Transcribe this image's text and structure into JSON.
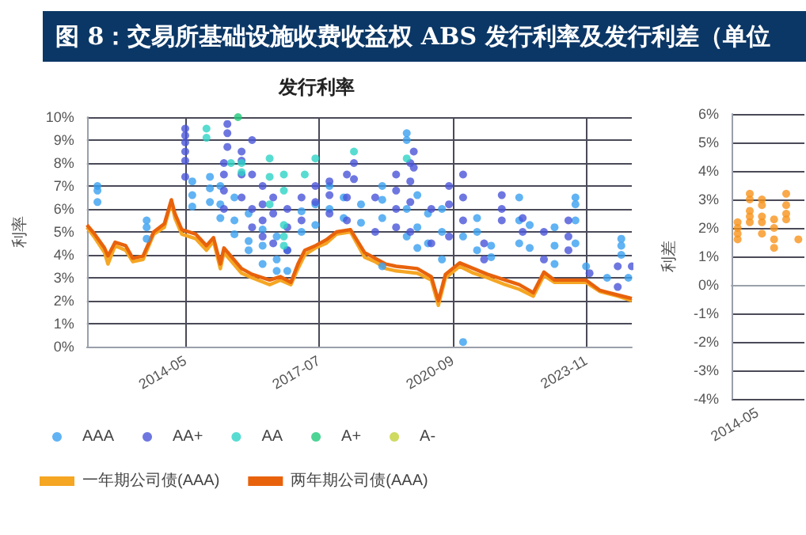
{
  "chart_data": [
    {
      "type": "scatter",
      "title": "发行利率",
      "ylabel": "利率",
      "annotations": [
        "图 8：交易所基础设施收费收益权 ABS 发行利率及发行利差（单位"
      ],
      "xlim": [
        "2012-01",
        "2024-12"
      ],
      "xticks": [
        "2014-05",
        "2017-07",
        "2020-09",
        "2023-11"
      ],
      "ylim": [
        0,
        10
      ],
      "yticks": [
        {
          "value": 0,
          "label": "0%"
        },
        {
          "value": 1,
          "label": "1%"
        },
        {
          "value": 2,
          "label": "2%"
        },
        {
          "value": 3,
          "label": "3%"
        },
        {
          "value": 4,
          "label": "4%"
        },
        {
          "value": 5,
          "label": "5%"
        },
        {
          "value": 6,
          "label": "6%"
        },
        {
          "value": 7,
          "label": "7%"
        },
        {
          "value": 8,
          "label": "8%"
        },
        {
          "value": 9,
          "label": "9%"
        },
        {
          "value": 10,
          "label": "10%"
        }
      ],
      "grid": true,
      "legend": "bottom",
      "marker": "circle",
      "series": [
        {
          "name": "AAA",
          "type": "scatter",
          "color": "#3aa0f0",
          "x": [
            "2012-04",
            "2012-04",
            "2012-04",
            "2013-06",
            "2013-06",
            "2013-06",
            "2014-07",
            "2014-07",
            "2014-07",
            "2014-12",
            "2014-12",
            "2014-12",
            "2015-03",
            "2015-03",
            "2015-03",
            "2015-07",
            "2015-07",
            "2015-07",
            "2015-11",
            "2015-11",
            "2015-11",
            "2016-03",
            "2016-03",
            "2016-03",
            "2016-07",
            "2016-07",
            "2016-07",
            "2016-10",
            "2016-10",
            "2017-02",
            "2017-02",
            "2017-06",
            "2017-06",
            "2017-10",
            "2017-10",
            "2018-02",
            "2018-02",
            "2018-07",
            "2018-07",
            "2019-01",
            "2019-01",
            "2019-01",
            "2019-01",
            "2019-08",
            "2019-08",
            "2019-08",
            "2019-08",
            "2019-11",
            "2019-11",
            "2019-11",
            "2020-02",
            "2020-02",
            "2020-06",
            "2020-06",
            "2020-06",
            "2020-12",
            "2020-12",
            "2021-04",
            "2021-04",
            "2021-04",
            "2021-08",
            "2021-08",
            "2022-04",
            "2022-04",
            "2022-04",
            "2022-07",
            "2022-07",
            "2023-02",
            "2023-02",
            "2023-02",
            "2023-08",
            "2023-08",
            "2023-08",
            "2023-08",
            "2023-11",
            "2024-05",
            "2024-09",
            "2024-09",
            "2024-09",
            "2024-11"
          ],
          "values": [
            7.0,
            6.8,
            6.3,
            5.5,
            5.2,
            4.7,
            7.2,
            6.6,
            6.1,
            7.4,
            6.9,
            6.3,
            7.0,
            6.2,
            5.6,
            6.5,
            5.5,
            4.9,
            5.8,
            4.6,
            4.2,
            5.1,
            4.4,
            3.6,
            4.8,
            3.8,
            3.3,
            4.2,
            3.3,
            5.9,
            5.0,
            6.2,
            5.3,
            7.0,
            6.0,
            6.5,
            5.6,
            6.2,
            5.4,
            7.0,
            6.4,
            5.6,
            3.5,
            9.3,
            9.0,
            6.0,
            4.8,
            6.6,
            5.2,
            4.3,
            5.8,
            4.5,
            6.0,
            5.0,
            3.8,
            0.2,
            4.8,
            5.6,
            5.0,
            4.2,
            4.4,
            3.9,
            6.5,
            5.5,
            4.5,
            5.3,
            4.3,
            5.2,
            4.4,
            3.6,
            6.5,
            6.2,
            5.5,
            4.5,
            3.5,
            3.0,
            4.7,
            4.4,
            4.0,
            3.0
          ]
        },
        {
          "name": "AA+",
          "type": "scatter",
          "color": "#4a55d8",
          "x": [
            "2014-05",
            "2014-05",
            "2014-05",
            "2014-05",
            "2014-05",
            "2014-05",
            "2015-04",
            "2015-04",
            "2015-04",
            "2015-04",
            "2015-05",
            "2015-05",
            "2015-05",
            "2015-09",
            "2015-09",
            "2015-09",
            "2015-09",
            "2015-12",
            "2015-12",
            "2015-12",
            "2015-12",
            "2016-03",
            "2016-03",
            "2016-03",
            "2016-03",
            "2016-06",
            "2016-06",
            "2016-06",
            "2016-10",
            "2016-10",
            "2016-10",
            "2017-02",
            "2017-02",
            "2017-06",
            "2017-06",
            "2017-10",
            "2017-10",
            "2017-10",
            "2018-03",
            "2018-03",
            "2018-03",
            "2018-05",
            "2018-05",
            "2018-11",
            "2018-11",
            "2019-05",
            "2019-05",
            "2019-05",
            "2019-05",
            "2019-09",
            "2019-09",
            "2019-09",
            "2019-09",
            "2019-10",
            "2019-10",
            "2020-03",
            "2020-03",
            "2020-08",
            "2020-08",
            "2020-08",
            "2020-12",
            "2020-12",
            "2020-12",
            "2021-06",
            "2021-06",
            "2021-11",
            "2021-11",
            "2021-11",
            "2022-05",
            "2022-05",
            "2022-11",
            "2022-11",
            "2023-06",
            "2023-06",
            "2023-06",
            "2023-12",
            "2024-08",
            "2024-08",
            "2024-12"
          ],
          "values": [
            9.5,
            9.2,
            8.9,
            8.5,
            8.1,
            7.4,
            8.0,
            7.5,
            6.8,
            6.0,
            9.7,
            9.3,
            8.7,
            8.5,
            8.1,
            7.5,
            6.5,
            9.0,
            7.5,
            6.0,
            5.2,
            7.0,
            6.2,
            5.5,
            4.8,
            6.5,
            5.8,
            4.5,
            6.0,
            5.2,
            4.2,
            6.5,
            5.5,
            7.0,
            6.3,
            7.2,
            6.6,
            5.8,
            7.5,
            6.5,
            5.5,
            8.0,
            7.3,
            6.5,
            5.0,
            7.5,
            6.8,
            6.0,
            5.2,
            8.0,
            7.2,
            6.3,
            5.0,
            8.5,
            7.8,
            6.0,
            4.5,
            7.0,
            6.2,
            4.8,
            7.5,
            6.5,
            5.5,
            4.5,
            3.8,
            6.6,
            6.0,
            5.5,
            5.6,
            5.0,
            5.0,
            3.8,
            5.5,
            4.8,
            4.2,
            3.2,
            3.5,
            2.6,
            3.5
          ]
        },
        {
          "name": "AA",
          "type": "scatter",
          "color": "#2ed3c6",
          "x": [
            "2014-11",
            "2014-11",
            "2015-06",
            "2015-09",
            "2015-09",
            "2016-05",
            "2016-05",
            "2016-05",
            "2016-09",
            "2016-09",
            "2016-09",
            "2016-09",
            "2016-09",
            "2017-03",
            "2017-06",
            "2018-05",
            "2019-08"
          ],
          "values": [
            9.5,
            9.1,
            8.0,
            8.0,
            7.6,
            8.2,
            7.4,
            6.2,
            7.5,
            6.8,
            5.3,
            4.8,
            4.4,
            7.5,
            8.2,
            8.5,
            8.2
          ]
        },
        {
          "name": "A+",
          "type": "scatter",
          "color": "#1fc97a",
          "x": [
            "2015-08"
          ],
          "values": [
            10.0
          ]
        },
        {
          "name": "A-",
          "type": "scatter",
          "color": "#c3d13a"
        },
        {
          "name": "一年期公司债(AAA)",
          "type": "line",
          "marker": "none",
          "color": "#f5a623",
          "x": [
            "2012-01",
            "2012-03",
            "2012-06",
            "2012-07",
            "2012-09",
            "2012-12",
            "2013-02",
            "2013-05",
            "2013-08",
            "2013-11",
            "2014-01",
            "2014-02",
            "2014-04",
            "2014-08",
            "2014-11",
            "2015-01",
            "2015-03",
            "2015-04",
            "2015-09",
            "2015-12",
            "2016-05",
            "2016-08",
            "2016-11",
            "2017-01",
            "2017-03",
            "2017-06",
            "2017-09",
            "2017-12",
            "2018-04",
            "2018-08",
            "2018-11",
            "2019-02",
            "2019-05",
            "2019-11",
            "2020-03",
            "2020-05",
            "2020-07",
            "2020-11",
            "2021-03",
            "2021-07",
            "2021-12",
            "2022-04",
            "2022-08",
            "2022-11",
            "2023-02",
            "2023-07",
            "2023-11",
            "2024-03",
            "2024-08",
            "2024-12"
          ],
          "values": [
            5.2,
            4.8,
            4.1,
            3.6,
            4.4,
            4.2,
            3.7,
            3.8,
            4.9,
            5.2,
            6.3,
            5.6,
            4.9,
            4.7,
            4.2,
            4.6,
            3.4,
            4.1,
            3.2,
            3.0,
            2.7,
            2.9,
            2.7,
            3.4,
            4.0,
            4.3,
            4.5,
            4.9,
            5.0,
            3.9,
            3.7,
            3.4,
            3.3,
            3.2,
            2.9,
            1.8,
            3.0,
            3.5,
            3.2,
            3.0,
            2.7,
            2.5,
            2.2,
            3.1,
            2.8,
            2.8,
            2.8,
            2.4,
            2.2,
            2.0
          ]
        },
        {
          "name": "两年期公司债(AAA)",
          "type": "line",
          "marker": "none",
          "color": "#e8620c",
          "x": [
            "2012-01",
            "2012-03",
            "2012-06",
            "2012-07",
            "2012-09",
            "2012-12",
            "2013-02",
            "2013-05",
            "2013-08",
            "2013-11",
            "2014-01",
            "2014-02",
            "2014-04",
            "2014-08",
            "2014-11",
            "2015-01",
            "2015-03",
            "2015-04",
            "2015-09",
            "2015-12",
            "2016-05",
            "2016-08",
            "2016-11",
            "2017-01",
            "2017-03",
            "2017-06",
            "2017-09",
            "2017-12",
            "2018-04",
            "2018-08",
            "2018-11",
            "2019-02",
            "2019-05",
            "2019-11",
            "2020-03",
            "2020-05",
            "2020-07",
            "2020-11",
            "2021-03",
            "2021-07",
            "2021-12",
            "2022-04",
            "2022-08",
            "2022-11",
            "2023-02",
            "2023-07",
            "2023-11",
            "2024-03",
            "2024-08",
            "2024-12"
          ],
          "values": [
            5.3,
            4.95,
            4.3,
            3.95,
            4.55,
            4.4,
            3.85,
            3.95,
            5.0,
            5.35,
            6.4,
            5.8,
            5.1,
            4.9,
            4.4,
            4.75,
            3.6,
            4.3,
            3.4,
            3.15,
            2.9,
            3.05,
            2.8,
            3.6,
            4.2,
            4.4,
            4.65,
            5.0,
            5.1,
            4.1,
            3.85,
            3.6,
            3.5,
            3.4,
            3.05,
            2.0,
            3.15,
            3.65,
            3.4,
            3.15,
            2.9,
            2.7,
            2.35,
            3.25,
            2.9,
            2.9,
            2.9,
            2.45,
            2.25,
            2.1
          ]
        }
      ]
    },
    {
      "type": "scatter",
      "ylabel": "利差",
      "grid": "y",
      "marker": "circle",
      "annotations": [
        "2014-05"
      ],
      "categories": [
        null,
        null,
        null,
        null,
        null,
        null
      ],
      "ylim": [
        -4,
        6
      ],
      "yticks": [
        {
          "value": -4,
          "label": "-4%"
        },
        {
          "value": -3,
          "label": "-3%"
        },
        {
          "value": -2,
          "label": "-2%"
        },
        {
          "value": -1,
          "label": "-1%"
        },
        {
          "value": 0,
          "label": "0%"
        },
        {
          "value": 1,
          "label": "1%"
        },
        {
          "value": 2,
          "label": "2%"
        },
        {
          "value": 3,
          "label": "3%"
        },
        {
          "value": 4,
          "label": "4%"
        },
        {
          "value": 5,
          "label": "5%"
        },
        {
          "value": 6,
          "label": "6%"
        }
      ],
      "series": [
        {
          "color": "#f7941d",
          "values": [
            2.2,
            3.2,
            3.0,
            2.3,
            3.2,
            1.6
          ]
        },
        {
          "color": "#f7941d",
          "values": [
            2.0,
            3.0,
            2.8,
            2.0,
            2.8,
            null
          ]
        },
        {
          "color": "#f7941d",
          "values": [
            1.8,
            2.6,
            2.4,
            1.6,
            2.5,
            null
          ]
        },
        {
          "color": "#f7941d",
          "values": [
            1.6,
            2.4,
            2.2,
            1.3,
            2.3,
            null
          ]
        },
        {
          "color": "#f7941d",
          "values": [
            null,
            2.2,
            1.8,
            null,
            null,
            null
          ]
        }
      ]
    }
  ]
}
